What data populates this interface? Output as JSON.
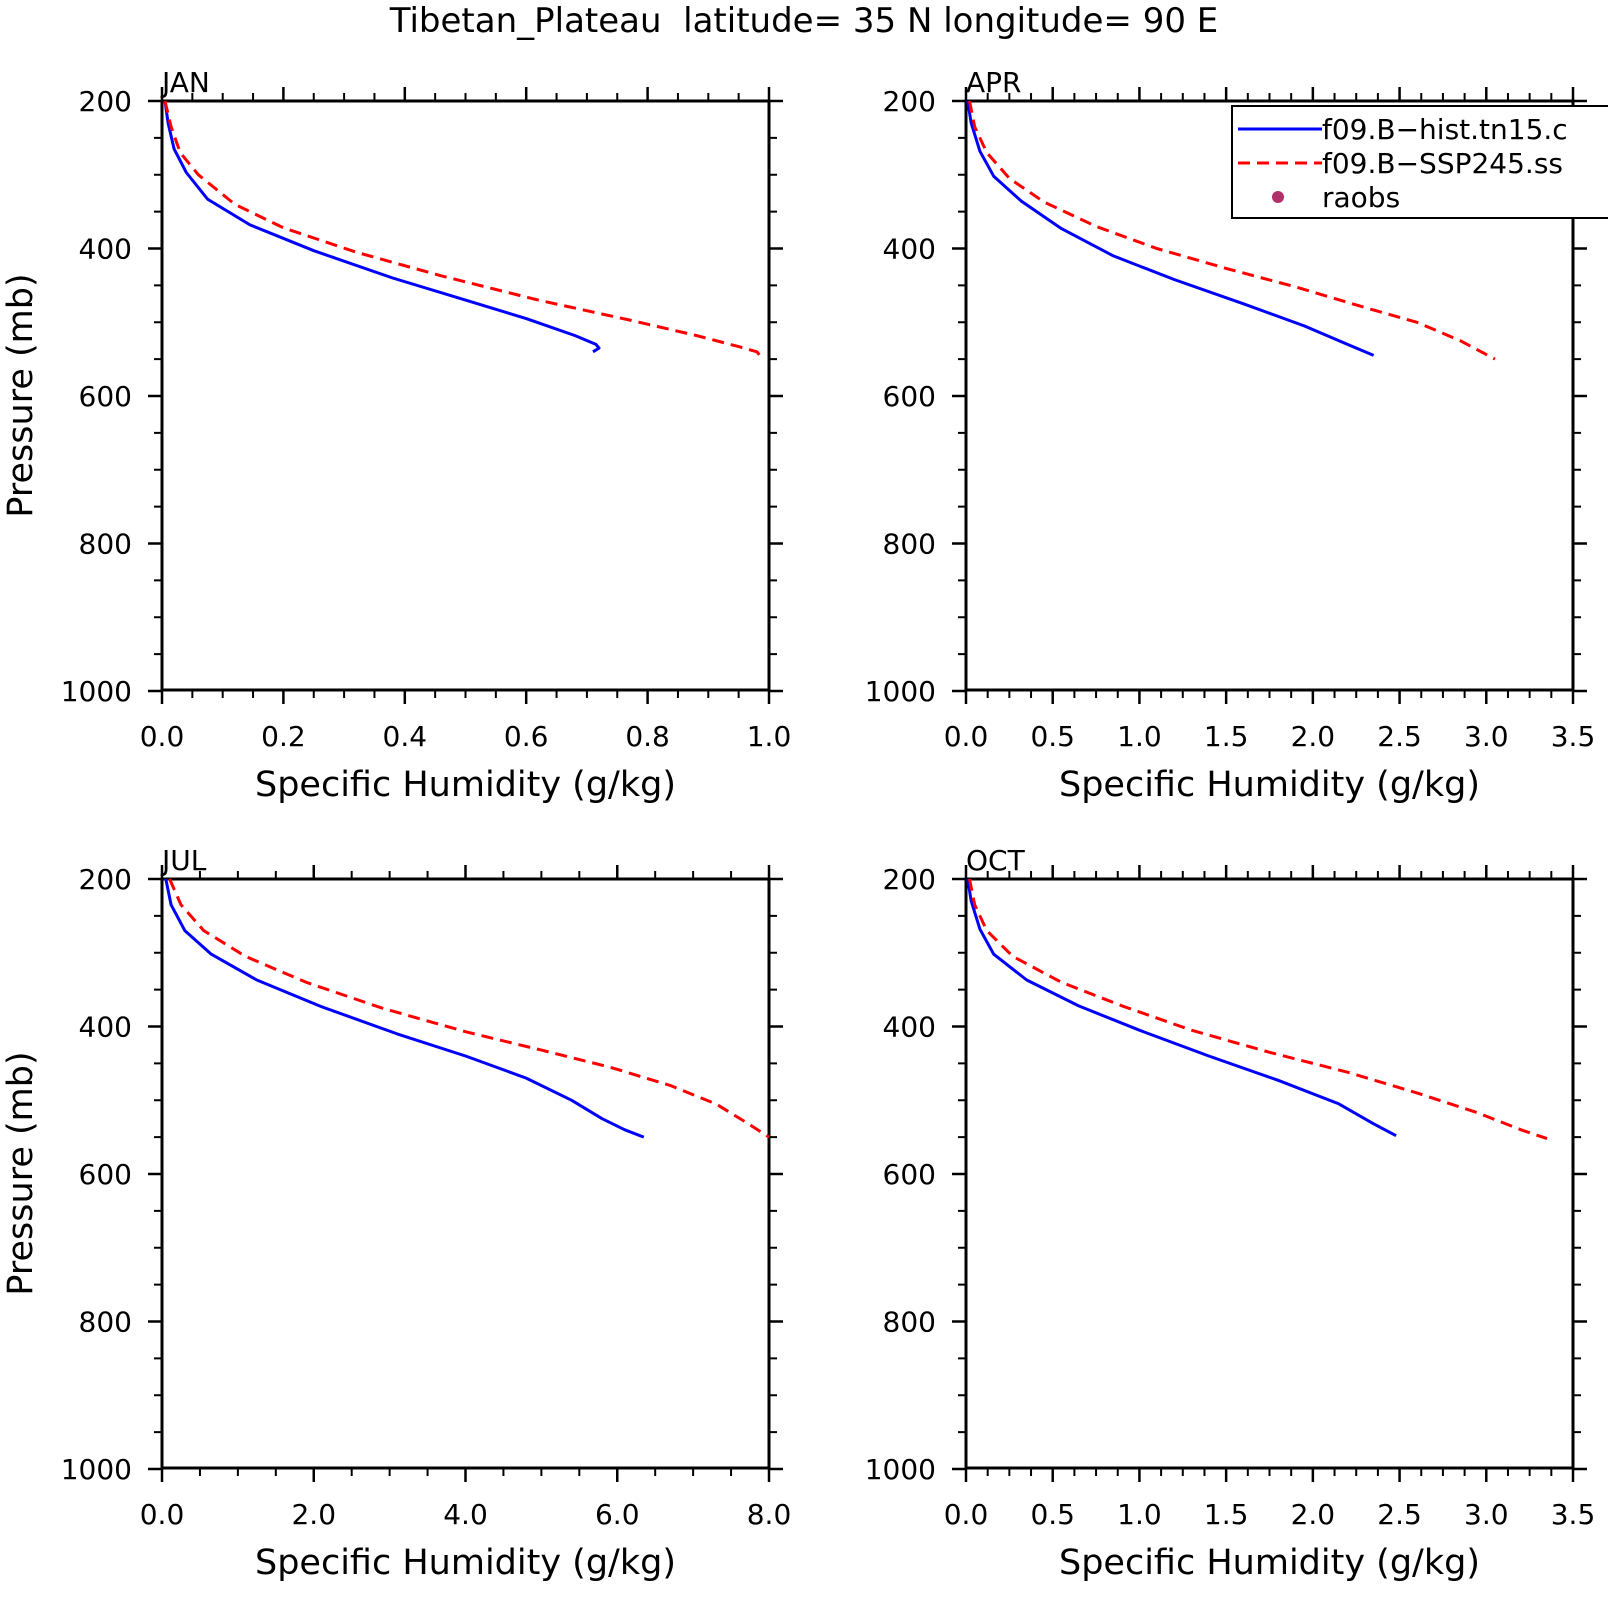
{
  "figure_title": "Tibetan_Plateau  latitude= 35 N longitude= 90 E",
  "legend": {
    "entries": [
      {
        "label": "f09.B−hist.tn15.c",
        "color": "#0000ff",
        "style": "solid"
      },
      {
        "label": "f09.B−SSP245.ss",
        "color": "#ff0000",
        "style": "dashed"
      },
      {
        "label": "raobs",
        "color": "#b0306a",
        "style": "marker"
      }
    ]
  },
  "chart_data": [
    {
      "type": "line",
      "title": "JAN",
      "xlabel": "Specific Humidity (g/kg)",
      "ylabel": "Pressure (mb)",
      "xlim": [
        0.0,
        1.0
      ],
      "xticks": [
        "0.0",
        "0.2",
        "0.4",
        "0.6",
        "0.8",
        "1.0"
      ],
      "ylim": [
        200,
        1000
      ],
      "yticks": [
        "200",
        "400",
        "600",
        "800",
        "1000"
      ],
      "y_inverted": true,
      "series": [
        {
          "name": "f09.B−hist.tn15.c",
          "color": "#0000ff",
          "style": "solid",
          "x": [
            0.005,
            0.01,
            0.02,
            0.04,
            0.075,
            0.145,
            0.25,
            0.38,
            0.5,
            0.6,
            0.68,
            0.715,
            0.72,
            0.71
          ],
          "y": [
            200,
            230,
            265,
            297,
            333,
            368,
            403,
            440,
            470,
            495,
            518,
            530,
            535,
            540
          ]
        },
        {
          "name": "f09.B−SSP245.ss",
          "color": "#ff0000",
          "style": "dashed",
          "x": [
            0.005,
            0.015,
            0.03,
            0.06,
            0.12,
            0.2,
            0.32,
            0.46,
            0.62,
            0.77,
            0.88,
            0.95,
            0.98,
            0.985
          ],
          "y": [
            200,
            235,
            270,
            300,
            340,
            372,
            405,
            437,
            470,
            497,
            518,
            533,
            540,
            545
          ]
        }
      ]
    },
    {
      "type": "line",
      "title": "APR",
      "xlabel": "Specific Humidity (g/kg)",
      "ylabel": "",
      "xlim": [
        0.0,
        3.5
      ],
      "xticks": [
        "0.0",
        "0.5",
        "1.0",
        "1.5",
        "2.0",
        "2.5",
        "3.0",
        "3.5"
      ],
      "ylim": [
        200,
        1000
      ],
      "yticks": [
        "200",
        "400",
        "600",
        "800",
        "1000"
      ],
      "y_inverted": true,
      "series": [
        {
          "name": "f09.B−hist.tn15.c",
          "color": "#0000ff",
          "style": "solid",
          "x": [
            0.01,
            0.03,
            0.08,
            0.16,
            0.32,
            0.55,
            0.85,
            1.2,
            1.6,
            1.95,
            2.2,
            2.35
          ],
          "y": [
            200,
            230,
            268,
            302,
            336,
            373,
            410,
            442,
            475,
            505,
            530,
            545
          ]
        },
        {
          "name": "f09.B−SSP245.ss",
          "color": "#ff0000",
          "style": "dashed",
          "x": [
            0.02,
            0.05,
            0.12,
            0.25,
            0.45,
            0.75,
            1.1,
            1.5,
            1.9,
            2.3,
            2.6,
            2.85,
            3.05
          ],
          "y": [
            200,
            235,
            270,
            305,
            337,
            370,
            400,
            427,
            452,
            480,
            500,
            525,
            550
          ]
        }
      ]
    },
    {
      "type": "line",
      "title": "JUL",
      "xlabel": "Specific Humidity (g/kg)",
      "ylabel": "Pressure (mb)",
      "xlim": [
        0.0,
        8.0
      ],
      "xticks": [
        "0.0",
        "2.0",
        "4.0",
        "6.0",
        "8.0"
      ],
      "ylim": [
        200,
        1000
      ],
      "yticks": [
        "200",
        "400",
        "600",
        "800",
        "1000"
      ],
      "y_inverted": true,
      "series": [
        {
          "name": "f09.B−hist.tn15.c",
          "color": "#0000ff",
          "style": "solid",
          "x": [
            0.05,
            0.12,
            0.3,
            0.65,
            1.25,
            2.1,
            3.1,
            4.0,
            4.8,
            5.4,
            5.8,
            6.1,
            6.35
          ],
          "y": [
            200,
            235,
            270,
            302,
            337,
            373,
            410,
            440,
            470,
            500,
            525,
            540,
            550
          ]
        },
        {
          "name": "f09.B−SSP245.ss",
          "color": "#ff0000",
          "style": "dashed",
          "x": [
            0.1,
            0.25,
            0.55,
            1.1,
            1.9,
            2.9,
            4.0,
            5.0,
            5.9,
            6.7,
            7.3,
            7.7,
            8.0
          ],
          "y": [
            200,
            235,
            270,
            305,
            340,
            375,
            407,
            432,
            455,
            480,
            505,
            530,
            550
          ]
        }
      ]
    },
    {
      "type": "line",
      "title": "OCT",
      "xlabel": "Specific Humidity (g/kg)",
      "ylabel": "",
      "xlim": [
        0.0,
        3.5
      ],
      "xticks": [
        "0.0",
        "0.5",
        "1.0",
        "1.5",
        "2.0",
        "2.5",
        "3.0",
        "3.5"
      ],
      "ylim": [
        200,
        1000
      ],
      "yticks": [
        "200",
        "400",
        "600",
        "800",
        "1000"
      ],
      "y_inverted": true,
      "series": [
        {
          "name": "f09.B−hist.tn15.c",
          "color": "#0000ff",
          "style": "solid",
          "x": [
            0.01,
            0.03,
            0.08,
            0.16,
            0.35,
            0.65,
            1.0,
            1.4,
            1.8,
            2.15,
            2.35,
            2.48
          ],
          "y": [
            200,
            230,
            268,
            302,
            337,
            372,
            405,
            440,
            473,
            505,
            532,
            548
          ]
        },
        {
          "name": "f09.B−SSP245.ss",
          "color": "#ff0000",
          "style": "dashed",
          "x": [
            0.02,
            0.05,
            0.12,
            0.27,
            0.55,
            0.9,
            1.3,
            1.75,
            2.2,
            2.6,
            2.95,
            3.2,
            3.35
          ],
          "y": [
            200,
            235,
            270,
            305,
            340,
            372,
            405,
            435,
            462,
            490,
            517,
            540,
            552
          ]
        }
      ]
    }
  ]
}
